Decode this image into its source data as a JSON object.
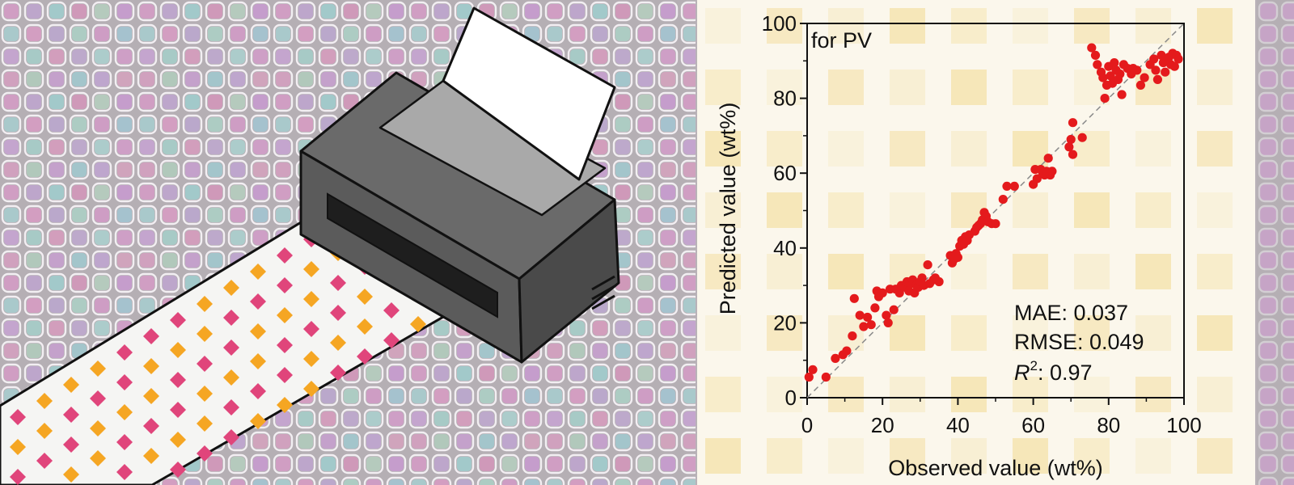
{
  "illustration": {
    "subject": "printer-printing-colored-diamond-pattern",
    "colors": {
      "pink": "#e0457b",
      "orange": "#f5a623",
      "printer_body": "#5a5a5a",
      "printer_top": "#6e6e6e",
      "paper": "#f6f6f4"
    }
  },
  "chart_data": {
    "type": "scatter",
    "title": "",
    "inset_label": "for PV",
    "xlabel": "Observed value (wt%)",
    "ylabel": "Predicted value (wt%)",
    "xlim": [
      0,
      100
    ],
    "ylim": [
      0,
      100
    ],
    "xticks": [
      "0",
      "20",
      "40",
      "60",
      "80",
      "100"
    ],
    "yticks": [
      "0",
      "20",
      "40",
      "60",
      "80",
      "100"
    ],
    "reference_line": "y = x (dashed)",
    "marker_color": "#e41a1c",
    "metrics": {
      "mae": "MAE: 0.037",
      "rmse": "RMSE: 0.049",
      "r2_symbol": "R",
      "r2_exp": "2",
      "r2_value": ": 0.97"
    },
    "points": [
      [
        0.5,
        5.5
      ],
      [
        1.5,
        7.5
      ],
      [
        5,
        5.5
      ],
      [
        7.5,
        10.5
      ],
      [
        9.5,
        11.5
      ],
      [
        10.5,
        12.5
      ],
      [
        12,
        16.5
      ],
      [
        12.5,
        26.5
      ],
      [
        14,
        22
      ],
      [
        15,
        19
      ],
      [
        16,
        21.5
      ],
      [
        17,
        19.5
      ],
      [
        18,
        24
      ],
      [
        18.5,
        28.5
      ],
      [
        19,
        27
      ],
      [
        20,
        28
      ],
      [
        21,
        22
      ],
      [
        21.5,
        20
      ],
      [
        22,
        29
      ],
      [
        23,
        23.5
      ],
      [
        23.5,
        29
      ],
      [
        24.5,
        28
      ],
      [
        25,
        30
      ],
      [
        26,
        29.5
      ],
      [
        26.5,
        31
      ],
      [
        27,
        28.5
      ],
      [
        27.5,
        30.5
      ],
      [
        28,
        31.5
      ],
      [
        28.5,
        28
      ],
      [
        29,
        30
      ],
      [
        29.5,
        29.5
      ],
      [
        30,
        31
      ],
      [
        30.5,
        32
      ],
      [
        31,
        30
      ],
      [
        32,
        35.5
      ],
      [
        32.5,
        30.5
      ],
      [
        33.5,
        31.5
      ],
      [
        34,
        32
      ],
      [
        35,
        31
      ],
      [
        38,
        38
      ],
      [
        38.5,
        36
      ],
      [
        39,
        37
      ],
      [
        39.5,
        38.5
      ],
      [
        40,
        37.5
      ],
      [
        40.5,
        40.5
      ],
      [
        41,
        42
      ],
      [
        41.5,
        41
      ],
      [
        42,
        43
      ],
      [
        42.5,
        42
      ],
      [
        43,
        43.5
      ],
      [
        44.5,
        44.5
      ],
      [
        45,
        45.5
      ],
      [
        45.5,
        46
      ],
      [
        46,
        46.5
      ],
      [
        46.5,
        47.5
      ],
      [
        47,
        49.5
      ],
      [
        47.5,
        48.5
      ],
      [
        48,
        47
      ],
      [
        49,
        46.5
      ],
      [
        50,
        46.5
      ],
      [
        52,
        53
      ],
      [
        53,
        56.5
      ],
      [
        55,
        56.5
      ],
      [
        60,
        57
      ],
      [
        60.5,
        61
      ],
      [
        61,
        58.5
      ],
      [
        62,
        61
      ],
      [
        62.5,
        60
      ],
      [
        63,
        59.5
      ],
      [
        63.5,
        60.5
      ],
      [
        64,
        64
      ],
      [
        64.5,
        59.5
      ],
      [
        65,
        60.5
      ],
      [
        69.5,
        67
      ],
      [
        70,
        69
      ],
      [
        70.5,
        65
      ],
      [
        70.5,
        73.5
      ],
      [
        73,
        69.5
      ],
      [
        75.5,
        93.5
      ],
      [
        76.5,
        91.5
      ],
      [
        77,
        89
      ],
      [
        78,
        87
      ],
      [
        78.5,
        85.5
      ],
      [
        79,
        80
      ],
      [
        79.5,
        83.5
      ],
      [
        80,
        88.5
      ],
      [
        80.5,
        86
      ],
      [
        81,
        84
      ],
      [
        81.5,
        89.5
      ],
      [
        82,
        87.5
      ],
      [
        82.5,
        85
      ],
      [
        83,
        86.5
      ],
      [
        83.5,
        81
      ],
      [
        84,
        89
      ],
      [
        85,
        88
      ],
      [
        86,
        86.5
      ],
      [
        86.5,
        88
      ],
      [
        87.5,
        87.5
      ],
      [
        88.5,
        83.5
      ],
      [
        89.5,
        85.5
      ],
      [
        91,
        89
      ],
      [
        92,
        90.5
      ],
      [
        92.5,
        87.5
      ],
      [
        93,
        85
      ],
      [
        94,
        91.5
      ],
      [
        94.5,
        89.5
      ],
      [
        95,
        87
      ],
      [
        96,
        91
      ],
      [
        96.5,
        89
      ],
      [
        97,
        92
      ],
      [
        98,
        91.5
      ],
      [
        98.5,
        90.5
      ],
      [
        97.5,
        88.5
      ]
    ]
  }
}
